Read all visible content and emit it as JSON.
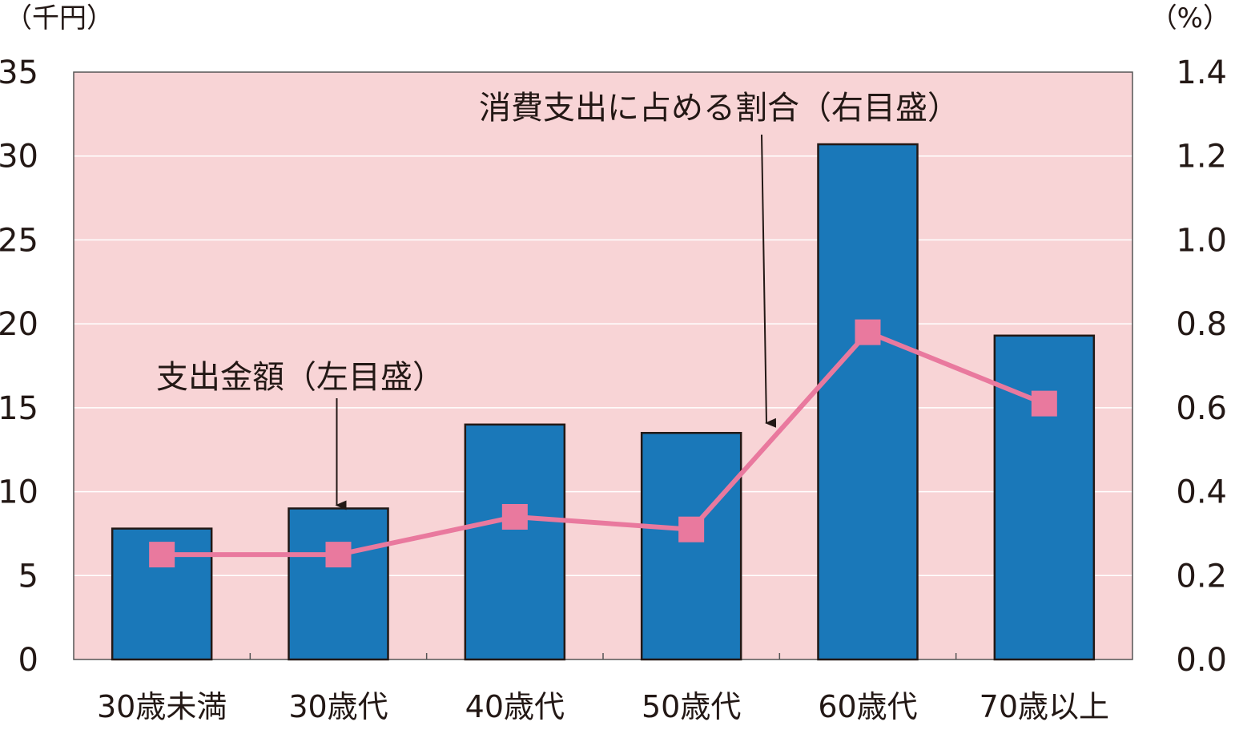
{
  "chart_data": {
    "type": "bar",
    "categories": [
      "30歳未満",
      "30歳代",
      "40歳代",
      "50歳代",
      "60歳代",
      "70歳以上"
    ],
    "series": [
      {
        "values": [
          7.8,
          9.0,
          14.0,
          13.5,
          30.7,
          19.3
        ],
        "axis": "left",
        "render": "bar",
        "color": "#1a78b9"
      },
      {
        "values": [
          0.25,
          0.25,
          0.34,
          0.31,
          0.78,
          0.61
        ],
        "axis": "right",
        "render": "line",
        "color": "#e9799e"
      }
    ],
    "y_left": {
      "unit": "（千円）",
      "ylim": [
        0,
        35
      ],
      "ticks": [
        "0",
        "5",
        "10",
        "15",
        "20",
        "25",
        "30",
        "35"
      ]
    },
    "y_right": {
      "unit": "（%）",
      "ylim": [
        0,
        1.4
      ],
      "ticks": [
        "0.0",
        "0.2",
        "0.4",
        "0.6",
        "0.8",
        "1.0",
        "1.2",
        "1.4"
      ]
    },
    "annotations": [
      {
        "text": "支出金額（左目盛）",
        "target_category": 1,
        "target_series": 0
      },
      {
        "text": "消費支出に占める割合（右目盛）",
        "target_category": 3,
        "target_series": 1
      }
    ],
    "grid": true,
    "plot_background": "#f8d4d6",
    "grid_color": "#ffffff"
  }
}
